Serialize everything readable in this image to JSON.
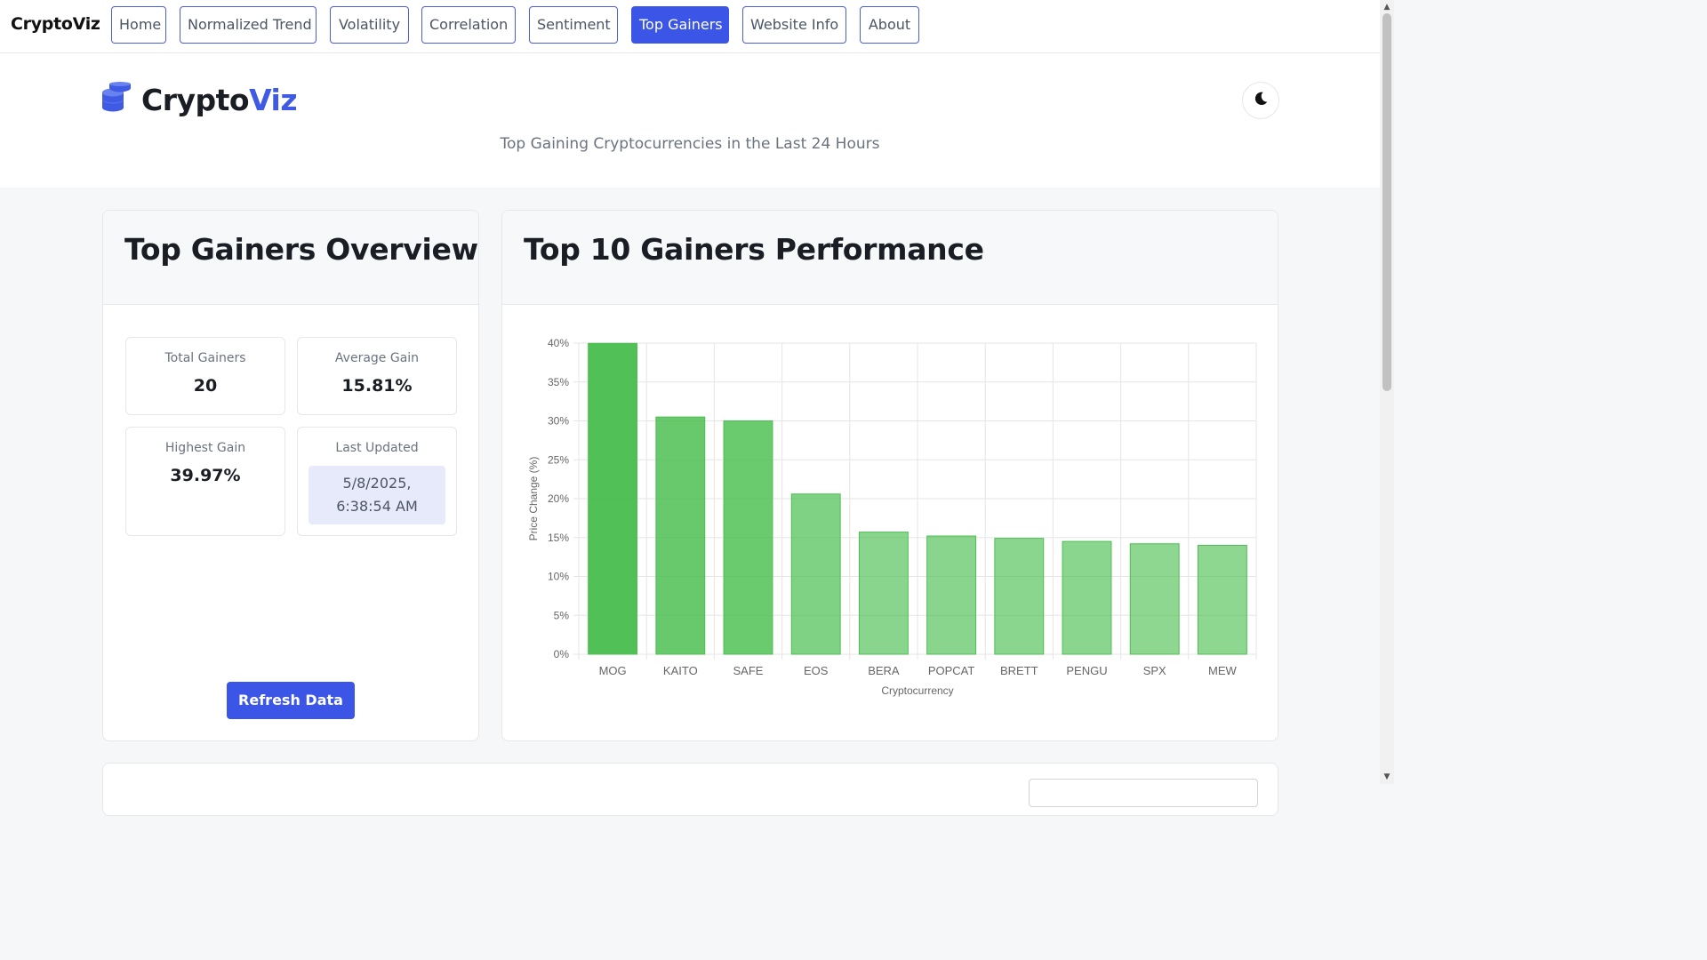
{
  "nav": {
    "brand": "CryptoViz",
    "items": [
      {
        "label": "Home",
        "active": false
      },
      {
        "label": "Normalized Trend",
        "active": false
      },
      {
        "label": "Volatility",
        "active": false
      },
      {
        "label": "Correlation",
        "active": false
      },
      {
        "label": "Sentiment",
        "active": false
      },
      {
        "label": "Top Gainers",
        "active": true
      },
      {
        "label": "Website Info",
        "active": false
      },
      {
        "label": "About",
        "active": false
      }
    ]
  },
  "header": {
    "logo_main": "Crypto",
    "logo_accent": "Viz",
    "logo_icon": "coins-icon",
    "theme_toggle_icon": "moon-icon",
    "subtitle": "Top Gaining Cryptocurrencies in the Last 24 Hours"
  },
  "overview": {
    "title": "Top Gainers Overview",
    "total_gainers_label": "Total Gainers",
    "total_gainers_value": "20",
    "average_gain_label": "Average Gain",
    "average_gain_value": "15.81%",
    "highest_gain_label": "Highest Gain",
    "highest_gain_value": "39.97%",
    "last_updated_label": "Last Updated",
    "last_updated_date": "5/8/2025,",
    "last_updated_time": "6:38:54 AM",
    "refresh_label": "Refresh Data"
  },
  "performance": {
    "title": "Top 10 Gainers Performance"
  },
  "colors": {
    "accent": "#3b55e6",
    "bar_top": "#4cbf50",
    "bar_light": "#7fd283"
  },
  "chart_data": {
    "type": "bar",
    "categories": [
      "MOG",
      "KAITO",
      "SAFE",
      "EOS",
      "BERA",
      "POPCAT",
      "BRETT",
      "PENGU",
      "SPX",
      "MEW"
    ],
    "values": [
      39.97,
      30.5,
      30.0,
      20.6,
      15.7,
      15.2,
      14.9,
      14.5,
      14.2,
      14.0
    ],
    "xlabel": "Cryptocurrency",
    "ylabel": "Price Change (%)",
    "ylim": [
      0,
      40
    ],
    "yticks": [
      "0%",
      "5%",
      "10%",
      "15%",
      "20%",
      "25%",
      "30%",
      "35%",
      "40%"
    ],
    "grid": true,
    "legend": "none"
  }
}
